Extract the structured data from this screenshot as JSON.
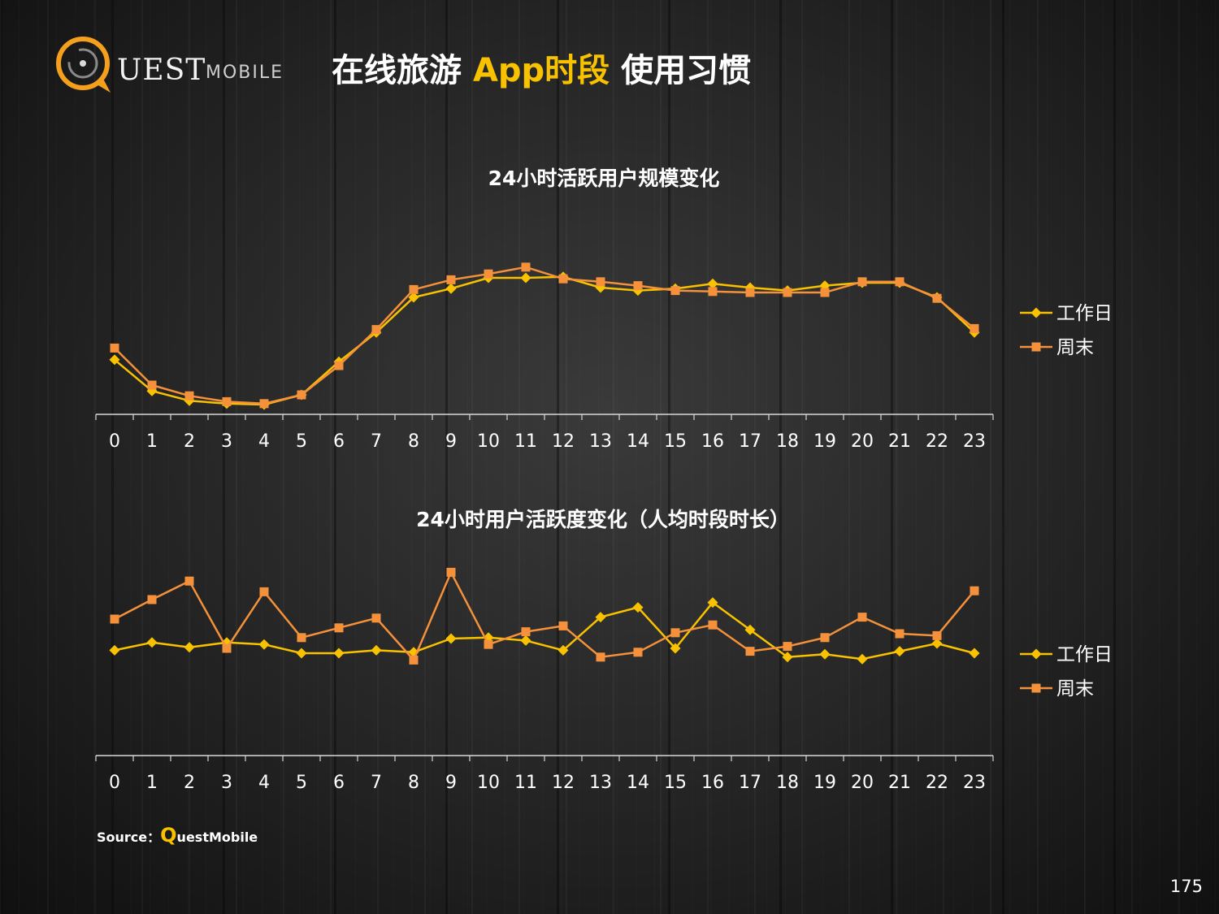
{
  "header": {
    "logo": {
      "main": "UEST",
      "sub": "MOBILE"
    },
    "title": {
      "part1": "在线旅游 ",
      "accent": "App时段",
      "part2": " 使用习惯"
    }
  },
  "colors": {
    "workday": "#f8c200",
    "weekend": "#f4913a",
    "axis": "#d9d9d9",
    "text": "#ffffff"
  },
  "chart_data": [
    {
      "type": "line",
      "title": "24小时活跃用户规模变化",
      "categories": [
        "0",
        "1",
        "2",
        "3",
        "4",
        "5",
        "6",
        "7",
        "8",
        "9",
        "10",
        "11",
        "12",
        "13",
        "14",
        "15",
        "16",
        "17",
        "18",
        "19",
        "20",
        "21",
        "22",
        "23"
      ],
      "ylim": [
        0,
        100
      ],
      "legend": "right",
      "series": [
        {
          "name": "工作日",
          "marker": "diamond",
          "values": [
            28,
            12,
            7,
            5.5,
            5,
            10,
            27,
            42,
            60,
            64.5,
            70,
            70,
            70.5,
            65,
            63.5,
            64.5,
            67,
            65,
            63.5,
            66,
            67.5,
            67.5,
            60,
            42
          ]
        },
        {
          "name": "周末",
          "marker": "square",
          "values": [
            34,
            15,
            9.5,
            6.5,
            5.5,
            10,
            25,
            43.5,
            64,
            69,
            72,
            75.5,
            69.5,
            68,
            66,
            63.5,
            63,
            62.5,
            62.5,
            62.5,
            68,
            68,
            59.5,
            44
          ]
        }
      ]
    },
    {
      "type": "line",
      "title": "24小时用户活跃度变化（人均时段时长）",
      "categories": [
        "0",
        "1",
        "2",
        "3",
        "4",
        "5",
        "6",
        "7",
        "8",
        "9",
        "10",
        "11",
        "12",
        "13",
        "14",
        "15",
        "16",
        "17",
        "18",
        "19",
        "20",
        "21",
        "22",
        "23"
      ],
      "ylim": [
        0,
        100
      ],
      "legend": "right",
      "series": [
        {
          "name": "工作日",
          "marker": "diamond",
          "values": [
            54,
            58,
            55.5,
            58,
            57,
            52.5,
            52.5,
            54,
            53,
            60,
            60.5,
            59,
            54,
            71,
            76,
            55,
            78.5,
            64.5,
            50.5,
            52,
            49.5,
            53.5,
            57.5,
            52.5
          ]
        },
        {
          "name": "周末",
          "marker": "square",
          "values": [
            70,
            80,
            89.5,
            55,
            84,
            60.5,
            65.5,
            70.5,
            49,
            94,
            57,
            63.5,
            66.5,
            50.5,
            53,
            63,
            67,
            53.5,
            56,
            60.5,
            71,
            62.5,
            61.5,
            84.5
          ]
        }
      ]
    }
  ],
  "footer": {
    "source_label": "Source：",
    "source_q": "Q",
    "source_name": "uestMobile",
    "page_number": "175"
  }
}
